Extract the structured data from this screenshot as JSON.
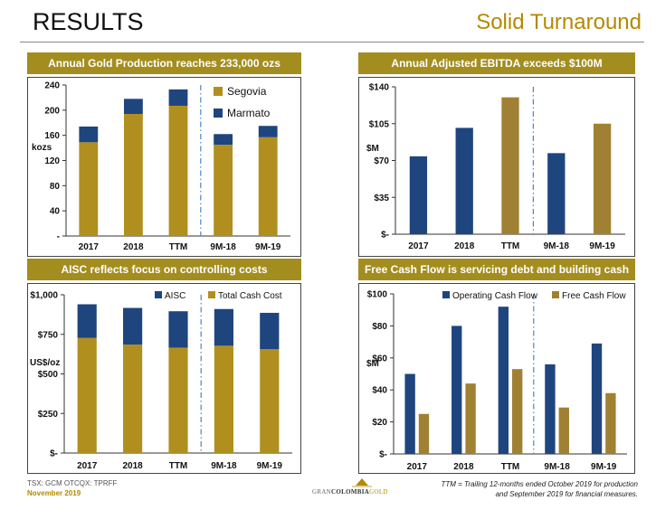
{
  "header": {
    "title": "RESULTS",
    "subtitle": "Solid Turnaround"
  },
  "colors": {
    "gold": "#a48d1f",
    "goldBar": "#b18f1f",
    "navy": "#1f457e",
    "olive": "#a08133",
    "divider": "#4a86c8"
  },
  "footer": {
    "ticker": "TSX: GCM  OTCQX: TPRFF",
    "date": "November 2019",
    "logo_pre": "GRAN",
    "logo_mid": "COLOMBIA",
    "logo_post": "GOLD",
    "footnote_line1": "TTM = Trailing 12-months ended October 2019 for production",
    "footnote_line2": "and September 2019 for financial measures."
  },
  "chart_data": [
    {
      "id": "gold",
      "type": "bar",
      "stacked": true,
      "title": "Annual Gold Production reaches 233,000 ozs",
      "ylabel": "kozs",
      "categories": [
        "2017",
        "2018",
        "TTM",
        "9M-18",
        "9M-19"
      ],
      "yticks": [
        "-",
        "40",
        "80",
        "120",
        "160",
        "200",
        "240"
      ],
      "ylim": [
        0,
        240
      ],
      "series": [
        {
          "name": "Segovia",
          "color": "#b18f1f",
          "values": [
            149,
            194,
            207,
            145,
            157
          ]
        },
        {
          "name": "Marmato",
          "color": "#1f457e",
          "values": [
            25,
            24,
            26,
            17,
            18
          ]
        }
      ],
      "legend": "right",
      "divider_after": 2
    },
    {
      "id": "ebitda",
      "type": "bar",
      "title": "Annual Adjusted EBITDA exceeds $100M",
      "ylabel": "$M",
      "categories": [
        "2017",
        "2018",
        "TTM",
        "9M-18",
        "9M-19"
      ],
      "yticks": [
        "$-",
        "$35",
        "$70",
        "$105",
        "$140"
      ],
      "ylim": [
        0,
        140
      ],
      "series": [
        {
          "name": "",
          "values": [
            74,
            101,
            130,
            77,
            105
          ]
        }
      ],
      "bar_colors": [
        "#1f457e",
        "#1f457e",
        "#a08133",
        "#1f457e",
        "#a08133"
      ],
      "divider_after": 2
    },
    {
      "id": "aisc",
      "type": "bar",
      "stacked": true,
      "title": "AISC reflects focus on controlling costs",
      "ylabel": "US$/oz",
      "categories": [
        "2017",
        "2018",
        "TTM",
        "9M-18",
        "9M-19"
      ],
      "yticks": [
        "$-",
        "$250",
        "$500",
        "$750",
        "$1,000"
      ],
      "ylim": [
        0,
        1000
      ],
      "series": [
        {
          "name": "Total Cash Cost",
          "color": "#b18f1f",
          "values": [
            727,
            685,
            666,
            678,
            656
          ]
        },
        {
          "name": "AISC",
          "color": "#1f457e",
          "values": [
            213,
            232,
            230,
            232,
            230
          ]
        }
      ],
      "legend": "top",
      "divider_after": 2
    },
    {
      "id": "fcf",
      "type": "bar",
      "grouped": true,
      "title": "Free Cash Flow is servicing debt and building cash",
      "ylabel": "$M",
      "categories": [
        "2017",
        "2018",
        "TTM",
        "9M-18",
        "9M-19"
      ],
      "yticks": [
        "$-",
        "$20",
        "$40",
        "$60",
        "$80",
        "$100"
      ],
      "ylim": [
        0,
        100
      ],
      "series": [
        {
          "name": "Operating Cash Flow",
          "color": "#1f457e",
          "values": [
            50,
            80,
            92,
            56,
            69
          ]
        },
        {
          "name": "Free Cash Flow",
          "color": "#a08133",
          "values": [
            25,
            44,
            53,
            29,
            38
          ]
        }
      ],
      "legend": "top",
      "divider_after": 2
    }
  ]
}
